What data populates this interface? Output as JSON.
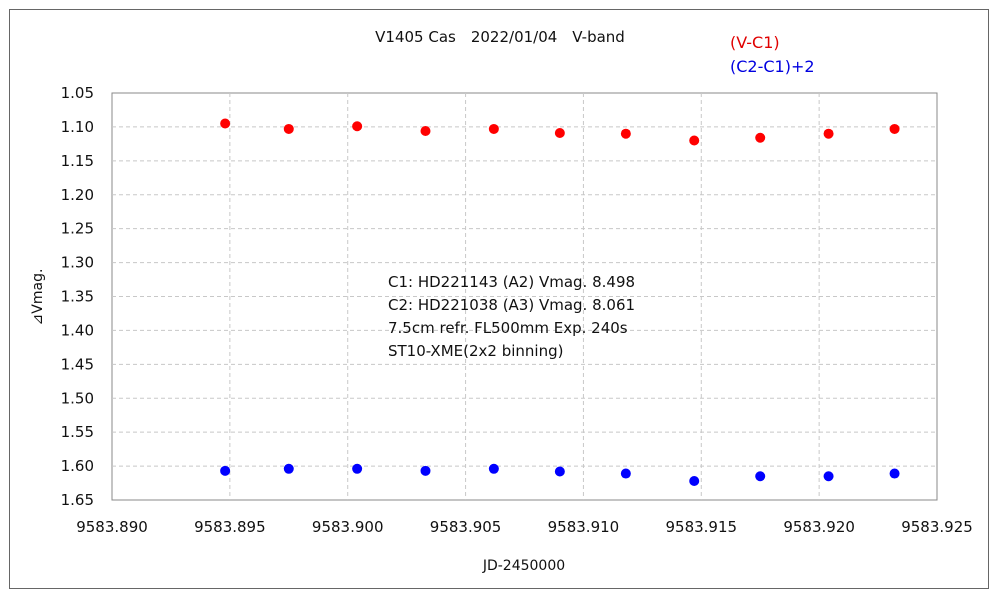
{
  "chart_data": {
    "type": "scatter",
    "title": "V1405 Cas　2022/01/04　V-band",
    "xlabel": "JD-2450000",
    "ylabel": "⊿Vmag.",
    "xlim": [
      9583.89,
      9583.925
    ],
    "ylim": [
      1.05,
      1.65
    ],
    "y_inverted": true,
    "grid": true,
    "legend_position": "top-right",
    "x_ticks": [
      "9583.890",
      "9583.895",
      "9583.900",
      "9583.905",
      "9583.910",
      "9583.915",
      "9583.920",
      "9583.925"
    ],
    "x_tick_values": [
      9583.89,
      9583.895,
      9583.9,
      9583.905,
      9583.91,
      9583.915,
      9583.92,
      9583.925
    ],
    "y_ticks": [
      "1.05",
      "1.10",
      "1.15",
      "1.20",
      "1.25",
      "1.30",
      "1.35",
      "1.40",
      "1.45",
      "1.50",
      "1.55",
      "1.60",
      "1.65"
    ],
    "y_tick_values": [
      1.05,
      1.1,
      1.15,
      1.2,
      1.25,
      1.3,
      1.35,
      1.4,
      1.45,
      1.5,
      1.55,
      1.6,
      1.65
    ],
    "series": [
      {
        "name": "(V-C1)",
        "color": "#ff0000",
        "x": [
          9583.8948,
          9583.8975,
          9583.9004,
          9583.9033,
          9583.9062,
          9583.909,
          9583.9118,
          9583.9147,
          9583.9175,
          9583.9204,
          9583.9232
        ],
        "y": [
          1.095,
          1.103,
          1.099,
          1.106,
          1.103,
          1.109,
          1.11,
          1.12,
          1.116,
          1.11,
          1.103
        ]
      },
      {
        "name": "(C2-C1)+2",
        "color": "#0000ff",
        "x": [
          9583.8948,
          9583.8975,
          9583.9004,
          9583.9033,
          9583.9062,
          9583.909,
          9583.9118,
          9583.9147,
          9583.9175,
          9583.9204,
          9583.9232
        ],
        "y": [
          1.607,
          1.604,
          1.604,
          1.607,
          1.604,
          1.608,
          1.611,
          1.622,
          1.615,
          1.615,
          1.611
        ]
      }
    ],
    "annotations": [
      "C1: HD221143 (A2) Vmag. 8.498",
      "C2: HD221038 (A3) Vmag. 8.061",
      "7.5cm refr. FL500mm Exp. 240s",
      "ST10-XME(2x2 binning)"
    ]
  }
}
